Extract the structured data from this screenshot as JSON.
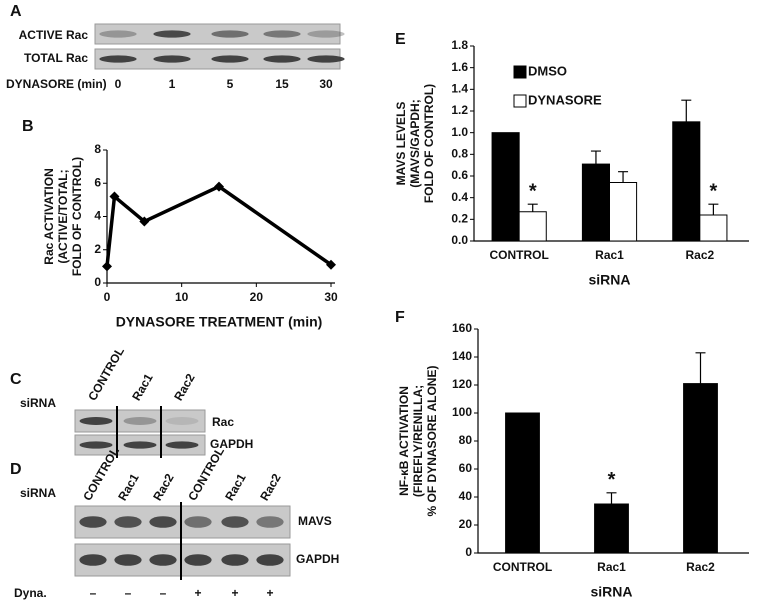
{
  "panels": {
    "A": {
      "letter": "A",
      "rows": [
        "ACTIVE Rac",
        "TOTAL Rac"
      ],
      "time_label": "DYNASORE (min)",
      "times": [
        "0",
        "1",
        "5",
        "15",
        "30"
      ]
    },
    "C": {
      "letter": "C",
      "row_label": "siRNA",
      "columns": [
        "CONTROL",
        "Rac1",
        "Rac2"
      ],
      "rows": [
        "Rac",
        "GAPDH"
      ]
    },
    "D": {
      "letter": "D",
      "row_label": "siRNA",
      "columns": [
        "CONTROL",
        "Rac1",
        "Rac2",
        "CONTROL",
        "Rac1",
        "Rac2"
      ],
      "rows": [
        "MAVS",
        "GAPDH"
      ],
      "treatment_label": "Dyna.",
      "treatment": [
        "–",
        "–",
        "–",
        "+",
        "+",
        "+"
      ]
    }
  },
  "chart_data": [
    {
      "panel": "B",
      "type": "line",
      "x": [
        0,
        1,
        5,
        15,
        30
      ],
      "values": [
        1.0,
        5.2,
        3.7,
        5.8,
        1.1
      ],
      "color": "#000000",
      "xlim": [
        0,
        30
      ],
      "xticks": [
        0,
        10,
        20,
        30
      ],
      "ylim": [
        0,
        8
      ],
      "yticks": [
        0,
        2,
        4,
        6,
        8
      ],
      "xlabel": "DYNASORE TREATMENT (min)",
      "ylabel": [
        "Rac ACTIVATION",
        "(ACTIVE/TOTAL;",
        "FOLD OF CONTROL)"
      ],
      "grid": false
    },
    {
      "panel": "E",
      "type": "bar",
      "categories": [
        "CONTROL",
        "Rac1",
        "Rac2"
      ],
      "series": [
        {
          "name": "DMSO",
          "color": "#000000",
          "values": [
            1.0,
            0.71,
            1.1
          ],
          "errors": [
            0,
            0.12,
            0.2
          ],
          "significance": [
            null,
            null,
            null
          ]
        },
        {
          "name": "DYNASORE",
          "color": "#ffffff",
          "values": [
            0.27,
            0.54,
            0.24
          ],
          "errors": [
            0.07,
            0.1,
            0.1
          ],
          "significance": [
            "*",
            null,
            "*"
          ]
        }
      ],
      "ylim": [
        0,
        1.8
      ],
      "yticks": [
        {
          "value": 0,
          "label": "0.0"
        },
        0.2,
        0.4,
        0.6,
        0.8,
        {
          "value": 1,
          "label": "1.0"
        },
        1.2,
        1.4,
        1.6,
        1.8
      ],
      "xlabel": "siRNA",
      "ylabel": [
        "MAVS LEVELS",
        "(MAVS/GAPDH;",
        "FOLD OF CONTROL)"
      ],
      "legend": "upper left",
      "grid": false
    },
    {
      "panel": "F",
      "type": "bar",
      "categories": [
        "CONTROL",
        "Rac1",
        "Rac2"
      ],
      "series": [
        {
          "color": "#000000",
          "values": [
            100,
            35,
            121
          ],
          "errors": [
            0,
            8,
            22
          ],
          "significance": [
            null,
            "*",
            null
          ]
        }
      ],
      "ylim": [
        0,
        160
      ],
      "yticks": [
        0,
        20,
        40,
        60,
        80,
        100,
        120,
        140,
        160
      ],
      "xlabel": "siRNA",
      "ylabel": [
        "NF-κB ACTIVATION",
        "(FIREFLY/RENILLA;",
        "% OF DYNASORE ALONE)"
      ],
      "grid": false
    }
  ]
}
